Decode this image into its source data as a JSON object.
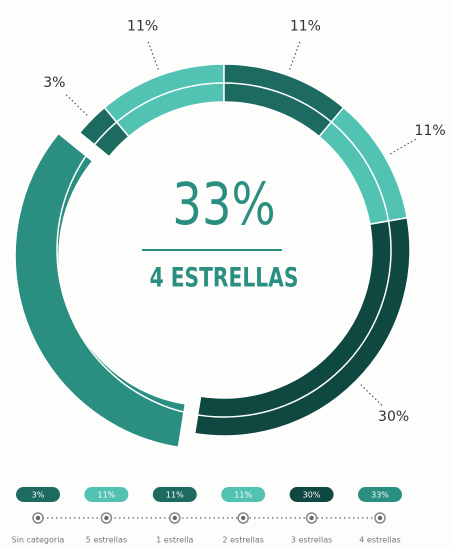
{
  "chart_data": {
    "type": "donut",
    "categories": [
      "Sin categoria",
      "5 estrellas",
      "1 estrella",
      "2 estrellas",
      "3 estrellas",
      "4 estrellas"
    ],
    "values": [
      3,
      11,
      11,
      11,
      30,
      33
    ],
    "value_labels": [
      "3%",
      "11%",
      "11%",
      "11%",
      "30%",
      "33%"
    ],
    "colors": [
      "#1d6b60",
      "#52c3b3",
      "#1d6b60",
      "#52c3b3",
      "#0f4741",
      "#2a8f80"
    ],
    "center_label": "4 ESTRELLAS"
  }
}
